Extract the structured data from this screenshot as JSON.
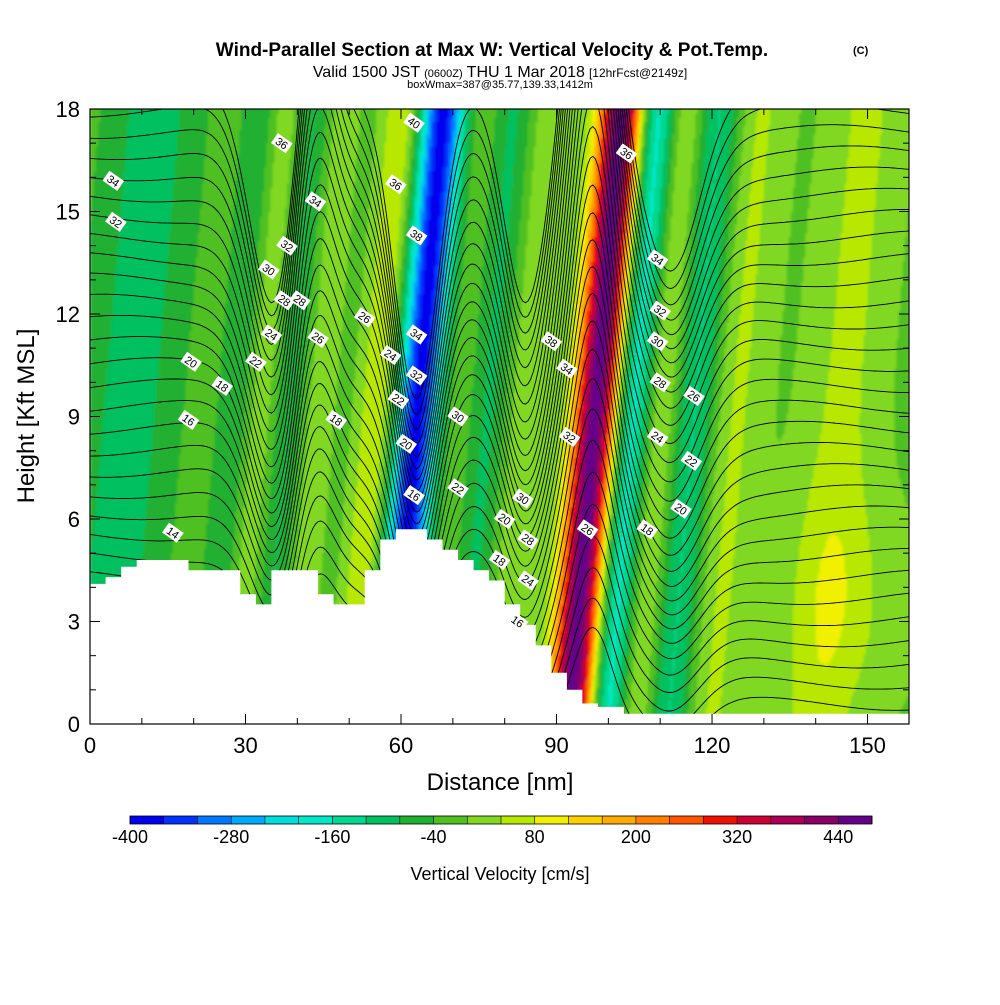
{
  "chart_data": {
    "type": "heatmap",
    "title": "Wind-Parallel Section at Max W: Vertical Velocity & Pot.Temp.",
    "title_mark": "(C)",
    "subtitle_parts": [
      "Valid 1500 JST",
      "(0600Z)",
      "THU 1 Mar 2018",
      "[12hrFcst@2149z]"
    ],
    "subtitle2": "boxWmax=387@35.77,139.33,1412m",
    "xlabel": "Distance [nm]",
    "ylabel": "Height [Kft MSL]",
    "xlim": [
      0,
      158
    ],
    "ylim": [
      0,
      18
    ],
    "x_ticks": [
      0,
      30,
      60,
      90,
      120,
      150
    ],
    "y_ticks": [
      0,
      3,
      6,
      9,
      12,
      15,
      18
    ],
    "colorbar": {
      "label": "Vertical Velocity [cm/s]",
      "tick_labels": [
        -400,
        -280,
        -160,
        -40,
        80,
        200,
        320,
        440
      ],
      "min": -400,
      "step": 40,
      "colors": [
        "#0000ee",
        "#0033ff",
        "#0077ff",
        "#00aaff",
        "#00dddd",
        "#00e8c8",
        "#00d890",
        "#00c060",
        "#20b030",
        "#50c020",
        "#80d820",
        "#b8e800",
        "#f0f000",
        "#ffd000",
        "#ffaa00",
        "#ff8000",
        "#ff5500",
        "#ee1100",
        "#cc0033",
        "#aa0055",
        "#880066",
        "#660088"
      ]
    },
    "velocity_features": [
      {
        "x": 3,
        "w": 5,
        "value": -60
      },
      {
        "x": 12,
        "w": 5,
        "value": -60
      },
      {
        "x": 28,
        "w": 2.6,
        "value": -100
      },
      {
        "x": 32,
        "w": 4,
        "value": 60
      },
      {
        "x": 38.5,
        "w": 2.8,
        "value": -110
      },
      {
        "x": 43.5,
        "w": 3.5,
        "value": 70
      },
      {
        "x": 49,
        "w": 4,
        "value": -40
      },
      {
        "x": 55.5,
        "w": 3.5,
        "value": 110
      },
      {
        "x": 63,
        "w": 3.2,
        "value": -380
      },
      {
        "x": 71,
        "w": 3.2,
        "value": 30
      },
      {
        "x": 77,
        "w": 3.5,
        "value": -90
      },
      {
        "x": 83.5,
        "w": 3.5,
        "value": 60
      },
      {
        "x": 97.5,
        "w": 3.0,
        "value": 480
      },
      {
        "x": 104.5,
        "w": 2.6,
        "value": -190
      },
      {
        "x": 110.5,
        "w": 3.0,
        "value": 70
      },
      {
        "x": 116.5,
        "w": 3.2,
        "value": -130
      },
      {
        "x": 124,
        "w": 4,
        "value": 60
      },
      {
        "x": 145,
        "w": 5,
        "value": 60
      }
    ],
    "contour_labels": [
      {
        "x": 4.5,
        "h": 15.9,
        "text": "34"
      },
      {
        "x": 5,
        "h": 14.7,
        "text": "32"
      },
      {
        "x": 37,
        "h": 17.0,
        "text": "36"
      },
      {
        "x": 43.5,
        "h": 15.3,
        "text": "34"
      },
      {
        "x": 38,
        "h": 14.0,
        "text": "32"
      },
      {
        "x": 34.5,
        "h": 13.3,
        "text": "30"
      },
      {
        "x": 37.5,
        "h": 12.4,
        "text": "28"
      },
      {
        "x": 40.5,
        "h": 12.4,
        "text": "28"
      },
      {
        "x": 35,
        "h": 11.4,
        "text": "24"
      },
      {
        "x": 44,
        "h": 11.3,
        "text": "26"
      },
      {
        "x": 53,
        "h": 11.9,
        "text": "26"
      },
      {
        "x": 32,
        "h": 10.6,
        "text": "22"
      },
      {
        "x": 19.5,
        "h": 10.6,
        "text": "20"
      },
      {
        "x": 25.5,
        "h": 9.9,
        "text": "18"
      },
      {
        "x": 19,
        "h": 8.9,
        "text": "16"
      },
      {
        "x": 47.5,
        "h": 8.9,
        "text": "18"
      },
      {
        "x": 16,
        "h": 5.6,
        "text": "14"
      },
      {
        "x": 62.5,
        "h": 17.6,
        "text": "40"
      },
      {
        "x": 59,
        "h": 15.8,
        "text": "36"
      },
      {
        "x": 63,
        "h": 14.3,
        "text": "38"
      },
      {
        "x": 63,
        "h": 11.4,
        "text": "34"
      },
      {
        "x": 58,
        "h": 10.8,
        "text": "24"
      },
      {
        "x": 63,
        "h": 10.2,
        "text": "32"
      },
      {
        "x": 59.5,
        "h": 9.5,
        "text": "22"
      },
      {
        "x": 61,
        "h": 8.2,
        "text": "20"
      },
      {
        "x": 62.5,
        "h": 6.7,
        "text": "16"
      },
      {
        "x": 71,
        "h": 9.0,
        "text": "30"
      },
      {
        "x": 71,
        "h": 6.9,
        "text": "22"
      },
      {
        "x": 80,
        "h": 6.0,
        "text": "20"
      },
      {
        "x": 83.5,
        "h": 6.6,
        "text": "30"
      },
      {
        "x": 84.5,
        "h": 5.4,
        "text": "28"
      },
      {
        "x": 79,
        "h": 4.8,
        "text": "18"
      },
      {
        "x": 84.5,
        "h": 4.2,
        "text": "24"
      },
      {
        "x": 82.5,
        "h": 3.0,
        "text": "16"
      },
      {
        "x": 89,
        "h": 11.2,
        "text": "38"
      },
      {
        "x": 92,
        "h": 10.4,
        "text": "34"
      },
      {
        "x": 92.5,
        "h": 8.4,
        "text": "32"
      },
      {
        "x": 96,
        "h": 5.7,
        "text": "26"
      },
      {
        "x": 107.5,
        "h": 5.7,
        "text": "18"
      },
      {
        "x": 103.5,
        "h": 16.7,
        "text": "36"
      },
      {
        "x": 109.5,
        "h": 13.6,
        "text": "34"
      },
      {
        "x": 110,
        "h": 12.1,
        "text": "32"
      },
      {
        "x": 109.5,
        "h": 11.2,
        "text": "30"
      },
      {
        "x": 110,
        "h": 10.0,
        "text": "28"
      },
      {
        "x": 116.5,
        "h": 9.6,
        "text": "26"
      },
      {
        "x": 109.5,
        "h": 8.4,
        "text": "24"
      },
      {
        "x": 116,
        "h": 7.7,
        "text": "22"
      },
      {
        "x": 114,
        "h": 6.3,
        "text": "20"
      }
    ]
  }
}
